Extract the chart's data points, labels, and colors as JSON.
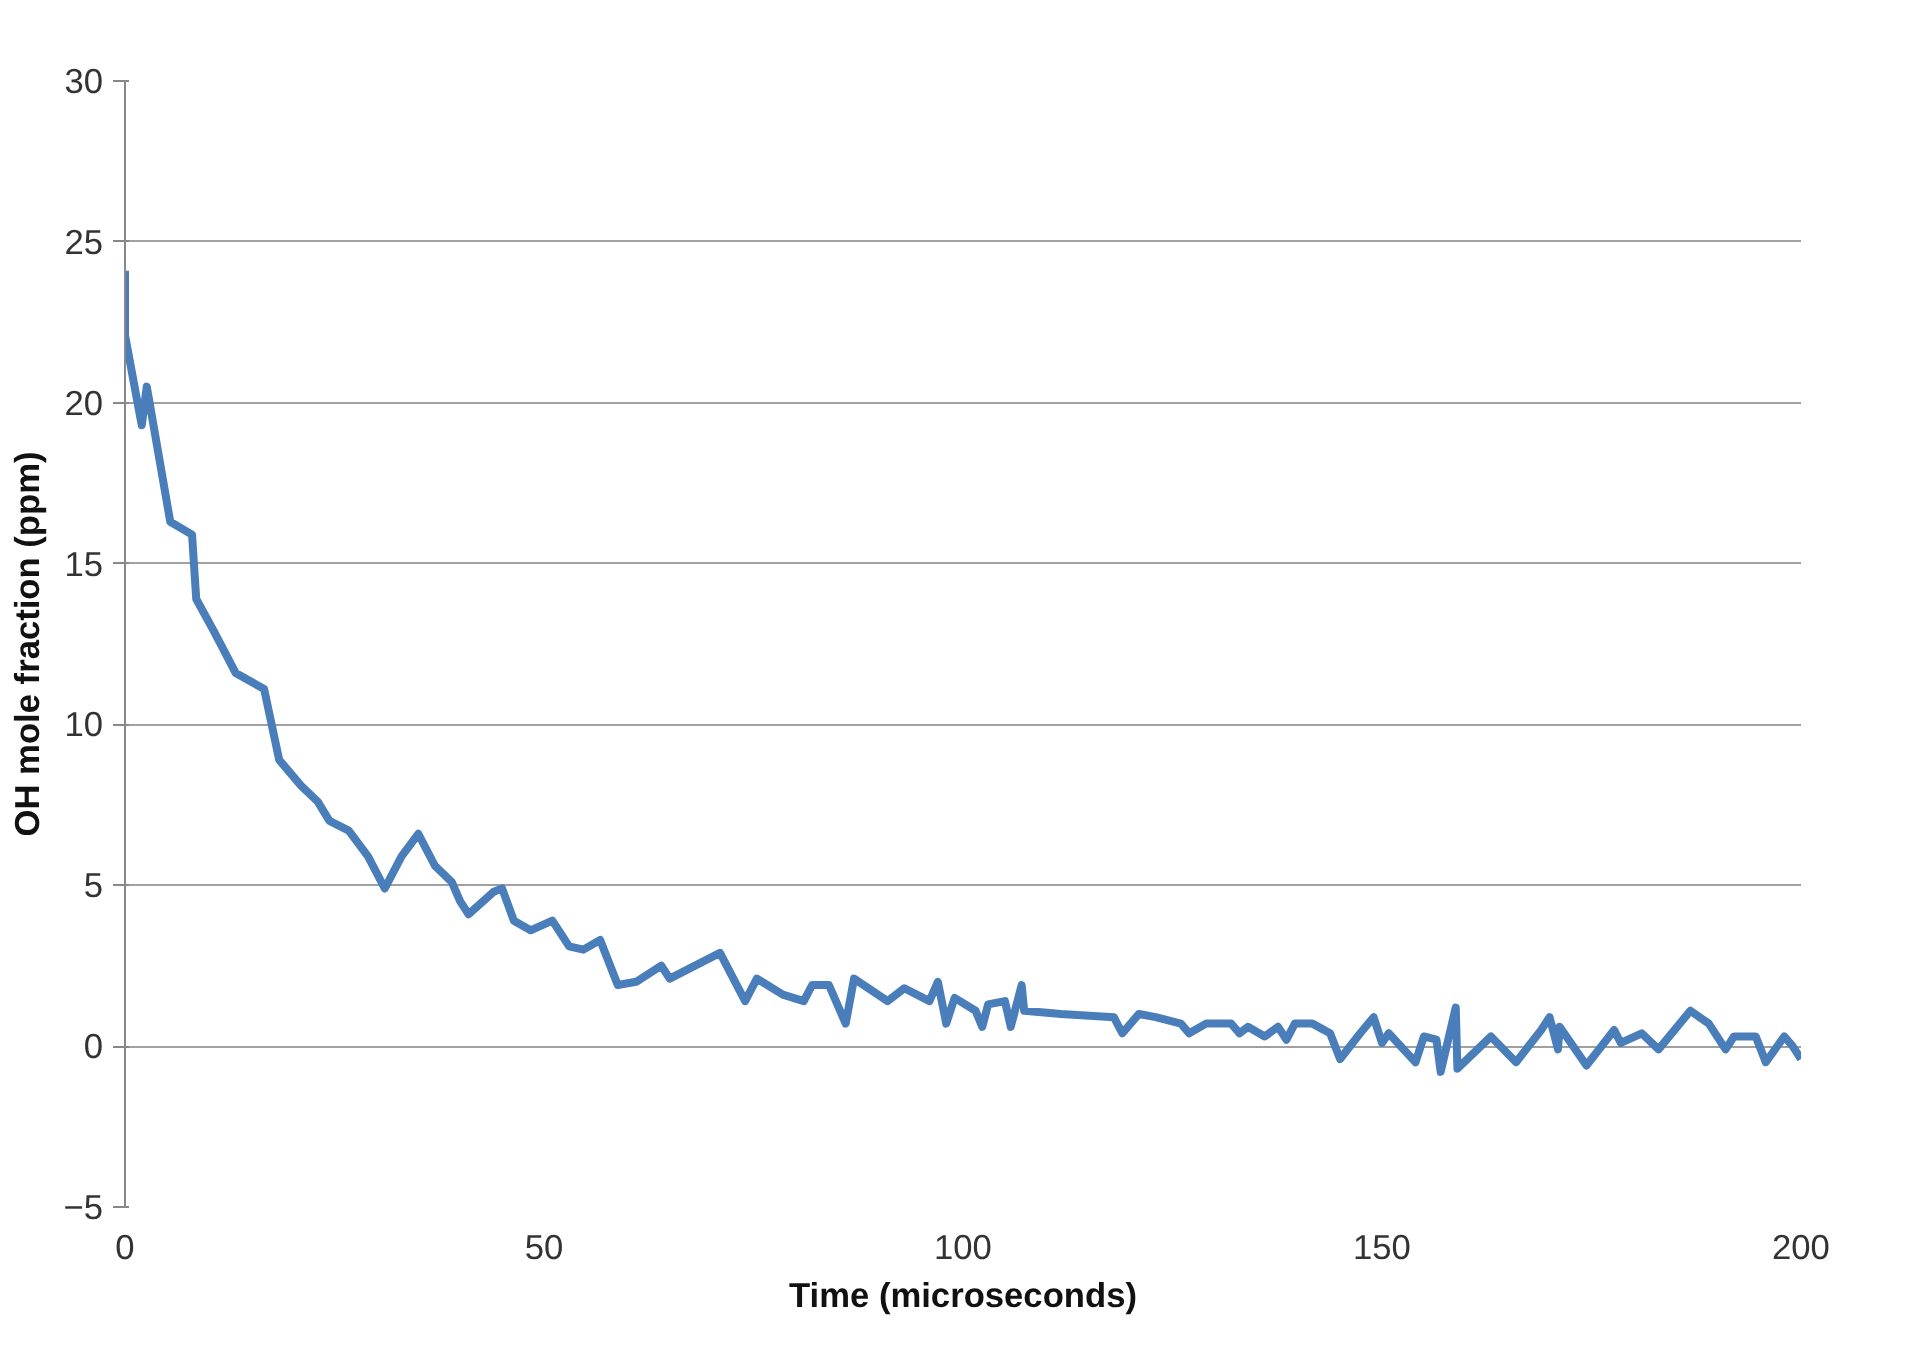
{
  "chart_data": {
    "type": "line",
    "xlabel": "Time (microseconds)",
    "ylabel": "OH mole fraction (ppm)",
    "xlim": [
      0,
      200
    ],
    "xticks": [
      0,
      50,
      100,
      150,
      200
    ],
    "ylim": [
      -5,
      30
    ],
    "yticks": [
      -5,
      0,
      5,
      10,
      15,
      20,
      25,
      30
    ],
    "grid": "y",
    "marker": "none",
    "line_style": "solid",
    "series": [
      {
        "color": "#4a7ebb",
        "x": [
          0,
          0,
          1,
          2,
          2.6,
          3.4,
          5.4,
          8,
          8.5,
          10.6,
          13.2,
          16.6,
          18.4,
          21,
          23,
          24.4,
          26.7,
          29,
          31,
          33,
          35,
          37,
          39,
          40,
          41,
          44,
          45,
          46.4,
          48.4,
          51,
          53,
          54.7,
          56.7,
          58.8,
          61,
          64,
          65,
          71,
          74,
          75.4,
          78.5,
          81,
          82,
          84,
          86,
          87,
          91,
          93,
          96,
          97,
          98,
          99,
          101.5,
          102.3,
          103,
          105,
          105.7,
          107,
          107.3,
          111.7,
          118,
          119,
          121,
          123,
          126,
          127,
          129,
          132,
          133,
          134,
          136,
          137.6,
          138.6,
          139.6,
          141.7,
          143.8,
          145,
          147.4,
          149,
          150,
          150.8,
          154,
          155,
          156.5,
          157,
          158.8,
          159,
          163,
          166,
          169,
          170,
          171,
          171.2,
          174.4,
          177.7,
          178.5,
          181,
          183,
          186.8,
          189,
          191,
          192,
          194.6,
          195.8,
          198,
          199,
          200
        ],
        "values": [
          24.1,
          22.1,
          20.7,
          19.3,
          20.5,
          19.3,
          16.3,
          15.9,
          13.9,
          12.9,
          11.6,
          11.1,
          8.9,
          8.1,
          7.6,
          7.0,
          6.7,
          5.9,
          4.9,
          5.9,
          6.6,
          5.6,
          5.1,
          4.5,
          4.1,
          4.8,
          4.9,
          3.9,
          3.6,
          3.9,
          3.1,
          3.0,
          3.3,
          1.9,
          2.0,
          2.5,
          2.1,
          2.9,
          1.4,
          2.1,
          1.6,
          1.4,
          1.9,
          1.9,
          0.7,
          2.1,
          1.4,
          1.8,
          1.4,
          2.0,
          0.7,
          1.5,
          1.1,
          0.6,
          1.3,
          1.4,
          0.6,
          1.9,
          1.1,
          1.0,
          0.9,
          0.4,
          1.0,
          0.9,
          0.7,
          0.4,
          0.7,
          0.7,
          0.4,
          0.6,
          0.3,
          0.6,
          0.2,
          0.7,
          0.7,
          0.4,
          -0.4,
          0.4,
          0.9,
          0.1,
          0.4,
          -0.5,
          0.3,
          0.2,
          -0.8,
          1.2,
          -0.7,
          0.3,
          -0.5,
          0.5,
          0.9,
          -0.1,
          0.6,
          -0.6,
          0.5,
          0.1,
          0.4,
          -0.1,
          1.1,
          0.7,
          -0.1,
          0.3,
          0.3,
          -0.5,
          0.3,
          0,
          -0.4
        ]
      }
    ]
  }
}
